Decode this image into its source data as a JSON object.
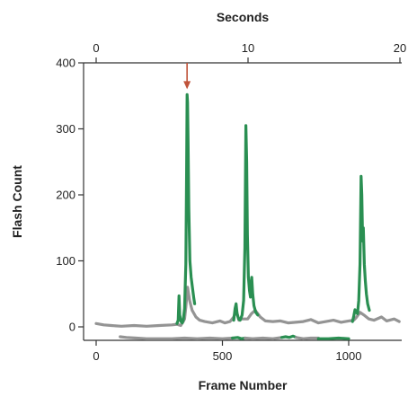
{
  "chart_data": {
    "type": "line",
    "title": "",
    "xlabel": "Frame Number",
    "ylabel": "Flash Count",
    "x2label": "Seconds",
    "xlim": [
      -20,
      1210
    ],
    "ylim": [
      -20,
      400
    ],
    "x2lim": [
      -0.55,
      20.3
    ],
    "x_ticks": [
      0,
      500,
      1000
    ],
    "y_ticks": [
      0,
      100,
      200,
      300,
      400
    ],
    "x2_ticks": [
      0,
      10,
      20
    ],
    "grid": false,
    "legend": "none",
    "colors": {
      "gray": "#949494",
      "green": "#2a8f52",
      "arrow": "#c0533a"
    },
    "marker": {
      "type": "arrow",
      "x": 360,
      "y_tip": 360,
      "y_tail": 400
    },
    "series": [
      {
        "color": "gray",
        "points": [
          [
            0,
            5
          ],
          [
            30,
            3
          ],
          [
            60,
            2
          ],
          [
            100,
            1
          ],
          [
            150,
            2
          ],
          [
            200,
            1
          ],
          [
            250,
            2
          ],
          [
            300,
            3
          ],
          [
            320,
            4
          ],
          [
            335,
            2
          ],
          [
            340,
            5
          ],
          [
            345,
            8
          ],
          [
            350,
            12
          ],
          [
            355,
            30
          ],
          [
            362,
            60
          ],
          [
            370,
            40
          ],
          [
            380,
            25
          ],
          [
            395,
            15
          ],
          [
            410,
            10
          ],
          [
            430,
            8
          ],
          [
            460,
            6
          ],
          [
            490,
            9
          ],
          [
            510,
            6
          ],
          [
            530,
            8
          ],
          [
            545,
            15
          ],
          [
            555,
            25
          ],
          [
            565,
            10
          ],
          [
            575,
            12
          ],
          [
            600,
            12
          ],
          [
            615,
            20
          ],
          [
            630,
            25
          ],
          [
            650,
            15
          ],
          [
            670,
            9
          ],
          [
            700,
            8
          ],
          [
            730,
            9
          ],
          [
            760,
            6
          ],
          [
            790,
            7
          ],
          [
            820,
            8
          ],
          [
            850,
            11
          ],
          [
            880,
            6
          ],
          [
            910,
            8
          ],
          [
            940,
            10
          ],
          [
            970,
            7
          ],
          [
            1000,
            9
          ],
          [
            1020,
            10
          ],
          [
            1030,
            14
          ],
          [
            1045,
            22
          ],
          [
            1060,
            18
          ],
          [
            1080,
            12
          ],
          [
            1100,
            10
          ],
          [
            1130,
            15
          ],
          [
            1150,
            9
          ],
          [
            1180,
            12
          ],
          [
            1200,
            8
          ]
        ]
      },
      {
        "color": "green",
        "points": [
          [
            320,
            5
          ],
          [
            325,
            10
          ],
          [
            328,
            47
          ],
          [
            331,
            18
          ],
          [
            336,
            8
          ],
          [
            341,
            6
          ],
          [
            345,
            10
          ],
          [
            350,
            28
          ],
          [
            355,
            95
          ],
          [
            358,
            230
          ],
          [
            360,
            352
          ],
          [
            362,
            340
          ],
          [
            364,
            280
          ],
          [
            367,
            180
          ],
          [
            371,
            100
          ],
          [
            376,
            75
          ],
          [
            381,
            60
          ],
          [
            386,
            45
          ],
          [
            390,
            35
          ]
        ]
      },
      {
        "color": "green",
        "points": [
          [
            545,
            10
          ],
          [
            550,
            28
          ],
          [
            554,
            35
          ],
          [
            558,
            20
          ],
          [
            564,
            12
          ],
          [
            570,
            10
          ],
          [
            578,
            18
          ],
          [
            584,
            40
          ],
          [
            589,
            120
          ],
          [
            593,
            305
          ],
          [
            596,
            250
          ],
          [
            599,
            140
          ],
          [
            603,
            75
          ],
          [
            607,
            55
          ],
          [
            611,
            45
          ],
          [
            616,
            75
          ],
          [
            620,
            50
          ],
          [
            625,
            32
          ],
          [
            632,
            22
          ],
          [
            640,
            18
          ]
        ]
      },
      {
        "color": "green",
        "points": [
          [
            1015,
            8
          ],
          [
            1020,
            16
          ],
          [
            1025,
            26
          ],
          [
            1030,
            22
          ],
          [
            1035,
            20
          ],
          [
            1040,
            40
          ],
          [
            1045,
            95
          ],
          [
            1049,
            228
          ],
          [
            1052,
            200
          ],
          [
            1055,
            130
          ],
          [
            1058,
            150
          ],
          [
            1062,
            95
          ],
          [
            1066,
            70
          ],
          [
            1070,
            50
          ],
          [
            1075,
            35
          ],
          [
            1082,
            25
          ]
        ]
      },
      {
        "color": "gray",
        "points": [
          [
            95,
            -15
          ],
          [
            120,
            -16
          ],
          [
            160,
            -17
          ],
          [
            200,
            -18
          ],
          [
            250,
            -18
          ],
          [
            300,
            -18
          ],
          [
            350,
            -17
          ],
          [
            400,
            -18
          ],
          [
            450,
            -17
          ],
          [
            500,
            -18
          ],
          [
            540,
            -17
          ]
        ]
      },
      {
        "color": "green",
        "points": [
          [
            540,
            -17
          ],
          [
            560,
            -16
          ],
          [
            575,
            -18
          ],
          [
            590,
            -17
          ]
        ]
      },
      {
        "color": "gray",
        "points": [
          [
            590,
            -17
          ],
          [
            620,
            -18
          ],
          [
            660,
            -17
          ],
          [
            700,
            -18
          ],
          [
            735,
            -16
          ]
        ]
      },
      {
        "color": "green",
        "points": [
          [
            735,
            -16
          ],
          [
            750,
            -15
          ],
          [
            765,
            -16
          ],
          [
            780,
            -14
          ],
          [
            792,
            -16
          ]
        ]
      },
      {
        "color": "gray",
        "points": [
          [
            792,
            -16
          ],
          [
            820,
            -18
          ],
          [
            850,
            -17
          ],
          [
            880,
            -17
          ]
        ]
      },
      {
        "color": "green",
        "points": [
          [
            880,
            -18
          ],
          [
            920,
            -18
          ],
          [
            960,
            -17
          ],
          [
            1000,
            -18
          ]
        ]
      }
    ]
  }
}
